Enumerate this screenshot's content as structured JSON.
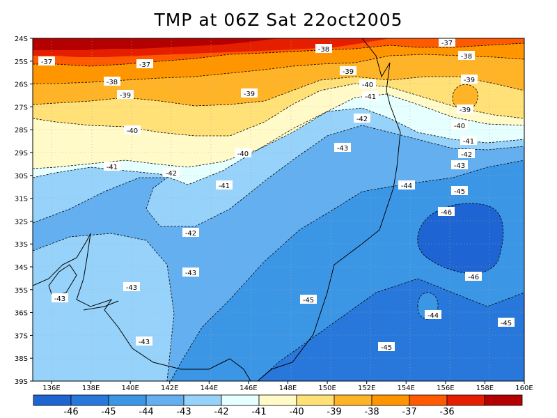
{
  "title": "TMP at 06Z Sat 22oct2005",
  "lat_labels": [
    "24S",
    "25S",
    "26S",
    "27S",
    "28S",
    "29S",
    "30S",
    "31S",
    "32S",
    "33S",
    "34S",
    "35S",
    "36S",
    "37S",
    "38S",
    "39S"
  ],
  "lon_labels": [
    "136E",
    "138E",
    "140E",
    "142E",
    "144E",
    "146E",
    "148E",
    "150E",
    "152E",
    "154E",
    "156E",
    "158E",
    "160E"
  ],
  "colorbar": {
    "colors": [
      "#1e64d2",
      "#2878dc",
      "#3c96e6",
      "#64aff0",
      "#96d2fa",
      "#e6ffff",
      "#fffac8",
      "#ffe178",
      "#ffb428",
      "#ff9600",
      "#ff5a00",
      "#e61e00",
      "#b40000"
    ],
    "labels": [
      "-46",
      "-45",
      "-44",
      "-43",
      "-42",
      "-41",
      "-40",
      "-39",
      "-38",
      "-37",
      "-36"
    ]
  },
  "contour_labels": [
    {
      "text": "-37"
    },
    {
      "text": "-37"
    },
    {
      "text": "-38"
    },
    {
      "text": "-37"
    },
    {
      "text": "-38"
    },
    {
      "text": "-38"
    },
    {
      "text": "-39"
    },
    {
      "text": "-39"
    },
    {
      "text": "-39"
    },
    {
      "text": "-40"
    },
    {
      "text": "-41"
    },
    {
      "text": "-39"
    },
    {
      "text": "-39"
    },
    {
      "text": "-40"
    },
    {
      "text": "-42"
    },
    {
      "text": "-40"
    },
    {
      "text": "-41"
    },
    {
      "text": "-43"
    },
    {
      "text": "-40"
    },
    {
      "text": "-42"
    },
    {
      "text": "-41"
    },
    {
      "text": "-43"
    },
    {
      "text": "-41"
    },
    {
      "text": "-42"
    },
    {
      "text": "-44"
    },
    {
      "text": "-45"
    },
    {
      "text": "-46"
    },
    {
      "text": "-42"
    },
    {
      "text": "-43"
    },
    {
      "text": "-46"
    },
    {
      "text": "-43"
    },
    {
      "text": "-45"
    },
    {
      "text": "-43"
    },
    {
      "text": "-44"
    },
    {
      "text": "-45"
    },
    {
      "text": "-43"
    },
    {
      "text": "-45"
    }
  ]
}
